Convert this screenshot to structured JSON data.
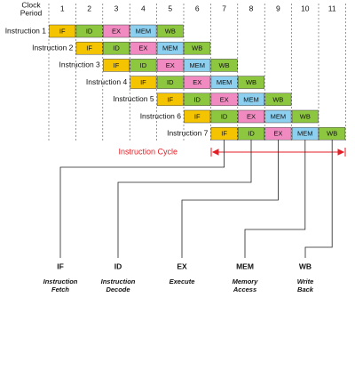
{
  "clock_label": [
    "Clock",
    "Period"
  ],
  "columns": [
    "1",
    "2",
    "3",
    "4",
    "5",
    "6",
    "7",
    "8",
    "9",
    "10",
    "11"
  ],
  "instructions": [
    {
      "label": "Instruction 1",
      "stages": [
        "IF",
        "ID",
        "EX",
        "MEM",
        "WB"
      ]
    },
    {
      "label": "Instruction 2",
      "stages": [
        "IF",
        "ID",
        "EX",
        "MEM",
        "WB"
      ]
    },
    {
      "label": "Instruction 3",
      "stages": [
        "IF",
        "ID",
        "EX",
        "MEM",
        "WB"
      ]
    },
    {
      "label": "Instruction 4",
      "stages": [
        "IF",
        "ID",
        "EX",
        "MEM",
        "WB"
      ]
    },
    {
      "label": "Instruction 5",
      "stages": [
        "IF",
        "ID",
        "EX",
        "MEM",
        "WB"
      ]
    },
    {
      "label": "Instruction 6",
      "stages": [
        "IF",
        "ID",
        "EX",
        "MEM",
        "WB"
      ]
    },
    {
      "label": "Instruction 7",
      "stages": [
        "IF",
        "ID",
        "EX",
        "MEM",
        "WB"
      ]
    }
  ],
  "cycle_label": "Instruction Cycle",
  "legend": [
    {
      "abbr": "IF",
      "name": [
        "Instruction",
        "Fetch"
      ]
    },
    {
      "abbr": "ID",
      "name": [
        "Instruction",
        "Decode"
      ]
    },
    {
      "abbr": "EX",
      "name": [
        "Execute"
      ]
    },
    {
      "abbr": "MEM",
      "name": [
        "Memory",
        "Access"
      ]
    },
    {
      "abbr": "WB",
      "name": [
        "Write",
        "Back"
      ]
    }
  ]
}
